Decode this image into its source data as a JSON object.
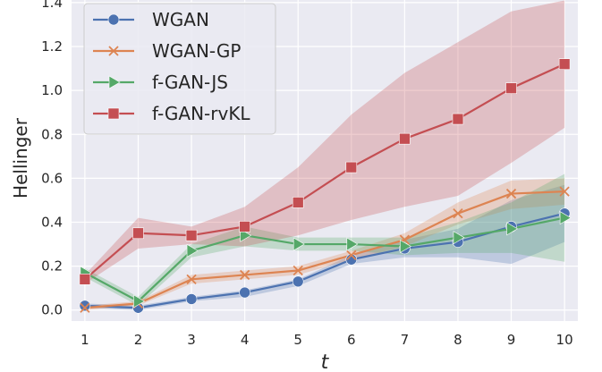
{
  "chart_data": {
    "type": "line",
    "title": "",
    "xlabel": "t",
    "ylabel": "Hellinger",
    "x": [
      1,
      2,
      3,
      4,
      5,
      6,
      7,
      8,
      9,
      10
    ],
    "xlim": [
      0.75,
      10.25
    ],
    "ylim": [
      -0.05,
      1.42
    ],
    "xticks": [
      1,
      2,
      3,
      4,
      5,
      6,
      7,
      8,
      9,
      10
    ],
    "yticks": [
      0.0,
      0.2,
      0.4,
      0.6,
      0.8,
      1.0,
      1.2,
      1.4
    ],
    "ytick_labels": [
      "0.0",
      "0.2",
      "0.4",
      "0.6",
      "0.8",
      "1.0",
      "1.2",
      "1.4"
    ],
    "grid": true,
    "legend_position": "top-left",
    "series": [
      {
        "name": "WGAN",
        "color": "#4c72b0",
        "marker": "circle",
        "values": [
          0.02,
          0.01,
          0.05,
          0.08,
          0.13,
          0.23,
          0.28,
          0.31,
          0.38,
          0.44
        ],
        "band_low": [
          0.01,
          0.0,
          0.04,
          0.06,
          0.11,
          0.21,
          0.24,
          0.24,
          0.21,
          0.31
        ],
        "band_high": [
          0.03,
          0.02,
          0.06,
          0.09,
          0.14,
          0.25,
          0.32,
          0.37,
          0.5,
          0.57
        ]
      },
      {
        "name": "WGAN-GP",
        "color": "#dd8452",
        "marker": "x",
        "values": [
          0.01,
          0.03,
          0.14,
          0.16,
          0.18,
          0.25,
          0.32,
          0.44,
          0.53,
          0.54
        ],
        "band_low": [
          0.0,
          0.02,
          0.12,
          0.14,
          0.16,
          0.23,
          0.29,
          0.39,
          0.46,
          0.48
        ],
        "band_high": [
          0.02,
          0.04,
          0.16,
          0.18,
          0.2,
          0.27,
          0.35,
          0.49,
          0.59,
          0.6
        ]
      },
      {
        "name": "f-GAN-JS",
        "color": "#55a868",
        "marker": "triangle-right",
        "values": [
          0.17,
          0.04,
          0.27,
          0.34,
          0.3,
          0.3,
          0.29,
          0.33,
          0.37,
          0.42
        ],
        "band_low": [
          0.15,
          0.02,
          0.24,
          0.29,
          0.27,
          0.27,
          0.25,
          0.26,
          0.26,
          0.22
        ],
        "band_high": [
          0.19,
          0.06,
          0.3,
          0.38,
          0.33,
          0.33,
          0.33,
          0.4,
          0.49,
          0.62
        ]
      },
      {
        "name": "f-GAN-rvKL",
        "color": "#c44e52",
        "marker": "square",
        "values": [
          0.14,
          0.35,
          0.34,
          0.38,
          0.49,
          0.65,
          0.78,
          0.87,
          1.01,
          1.12
        ],
        "band_low": [
          0.12,
          0.28,
          0.3,
          0.29,
          0.34,
          0.41,
          0.47,
          0.52,
          0.67,
          0.83
        ],
        "band_high": [
          0.16,
          0.42,
          0.38,
          0.47,
          0.65,
          0.89,
          1.08,
          1.22,
          1.36,
          1.41
        ]
      }
    ]
  }
}
